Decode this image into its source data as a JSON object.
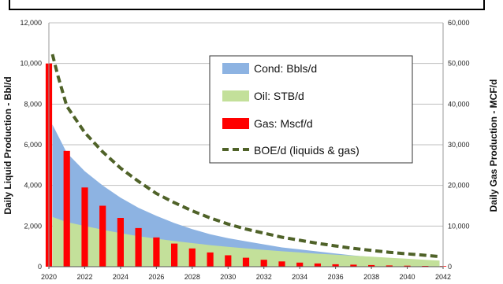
{
  "chart_data": {
    "type": "area",
    "title": "",
    "ylabel_left": "Daily Liquid Production - Bbl/d",
    "ylabel_right": "Daily Gas Production - MCF/d",
    "ylim_left": [
      0,
      12000
    ],
    "ylim_right": [
      0,
      60000
    ],
    "left_ticks": [
      "0",
      "2,000",
      "4,000",
      "6,000",
      "8,000",
      "10,000",
      "12,000"
    ],
    "right_ticks": [
      "0",
      "10,000",
      "20,000",
      "30,000",
      "40,000",
      "50,000",
      "60,000"
    ],
    "x_ticks": [
      "2020",
      "2022",
      "2024",
      "2026",
      "2028",
      "2030",
      "2032",
      "2034",
      "2036",
      "2038",
      "2040",
      "2042"
    ],
    "xlim": [
      2020,
      2042
    ],
    "grid": true,
    "legend_position": "top-right",
    "colors": {
      "cond": "#8db3e2",
      "oil": "#c3e09a",
      "gas": "#ff0000",
      "boe": "#4f6228"
    },
    "series": [
      {
        "name": "Cond: Bbls/d",
        "type": "area",
        "axis": "left",
        "x": [
          2020.2,
          2021,
          2022,
          2023,
          2024,
          2025,
          2026,
          2027,
          2028,
          2029,
          2030,
          2031,
          2032,
          2033,
          2034,
          2035,
          2036,
          2037,
          2038,
          2039,
          2040,
          2041,
          2041.8
        ],
        "values": [
          7000,
          5600,
          4700,
          4000,
          3400,
          2900,
          2500,
          2150,
          1850,
          1600,
          1400,
          1250,
          1100,
          950,
          850,
          750,
          650,
          550,
          480,
          410,
          350,
          300,
          260
        ]
      },
      {
        "name": "Oil: STB/d",
        "type": "area",
        "axis": "left",
        "x": [
          2020.2,
          2021,
          2022,
          2023,
          2024,
          2025,
          2026,
          2027,
          2028,
          2029,
          2030,
          2031,
          2032,
          2033,
          2034,
          2035,
          2036,
          2037,
          2038,
          2039,
          2040,
          2041,
          2041.8
        ],
        "values": [
          2450,
          2200,
          2000,
          1820,
          1650,
          1500,
          1380,
          1260,
          1160,
          1060,
          980,
          900,
          830,
          760,
          700,
          640,
          590,
          540,
          490,
          440,
          390,
          340,
          300
        ]
      },
      {
        "name": "Gas: Mscf/d",
        "type": "bar",
        "axis": "right",
        "x": [
          2020,
          2021,
          2022,
          2023,
          2024,
          2025,
          2026,
          2027,
          2028,
          2029,
          2030,
          2031,
          2032,
          2033,
          2034,
          2035,
          2036,
          2037,
          2038,
          2039,
          2040,
          2041,
          2042
        ],
        "values": [
          50000,
          28500,
          19500,
          15000,
          12000,
          9500,
          7200,
          5700,
          4500,
          3500,
          2800,
          2200,
          1700,
          1300,
          1000,
          800,
          600,
          500,
          400,
          300,
          250,
          200,
          150
        ]
      },
      {
        "name": "BOE/d (liquids & gas)",
        "type": "line",
        "axis": "left",
        "x": [
          2020.2,
          2020.5,
          2021,
          2022,
          2023,
          2024,
          2025,
          2026,
          2027,
          2028,
          2029,
          2030,
          2031,
          2032,
          2033,
          2034,
          2035,
          2036,
          2037,
          2038,
          2039,
          2040,
          2041,
          2041.8
        ],
        "values": [
          10450,
          9400,
          7900,
          6600,
          5650,
          4850,
          4200,
          3600,
          3150,
          2750,
          2400,
          2100,
          1850,
          1650,
          1450,
          1300,
          1150,
          1020,
          900,
          800,
          710,
          630,
          560,
          500
        ]
      }
    ]
  }
}
